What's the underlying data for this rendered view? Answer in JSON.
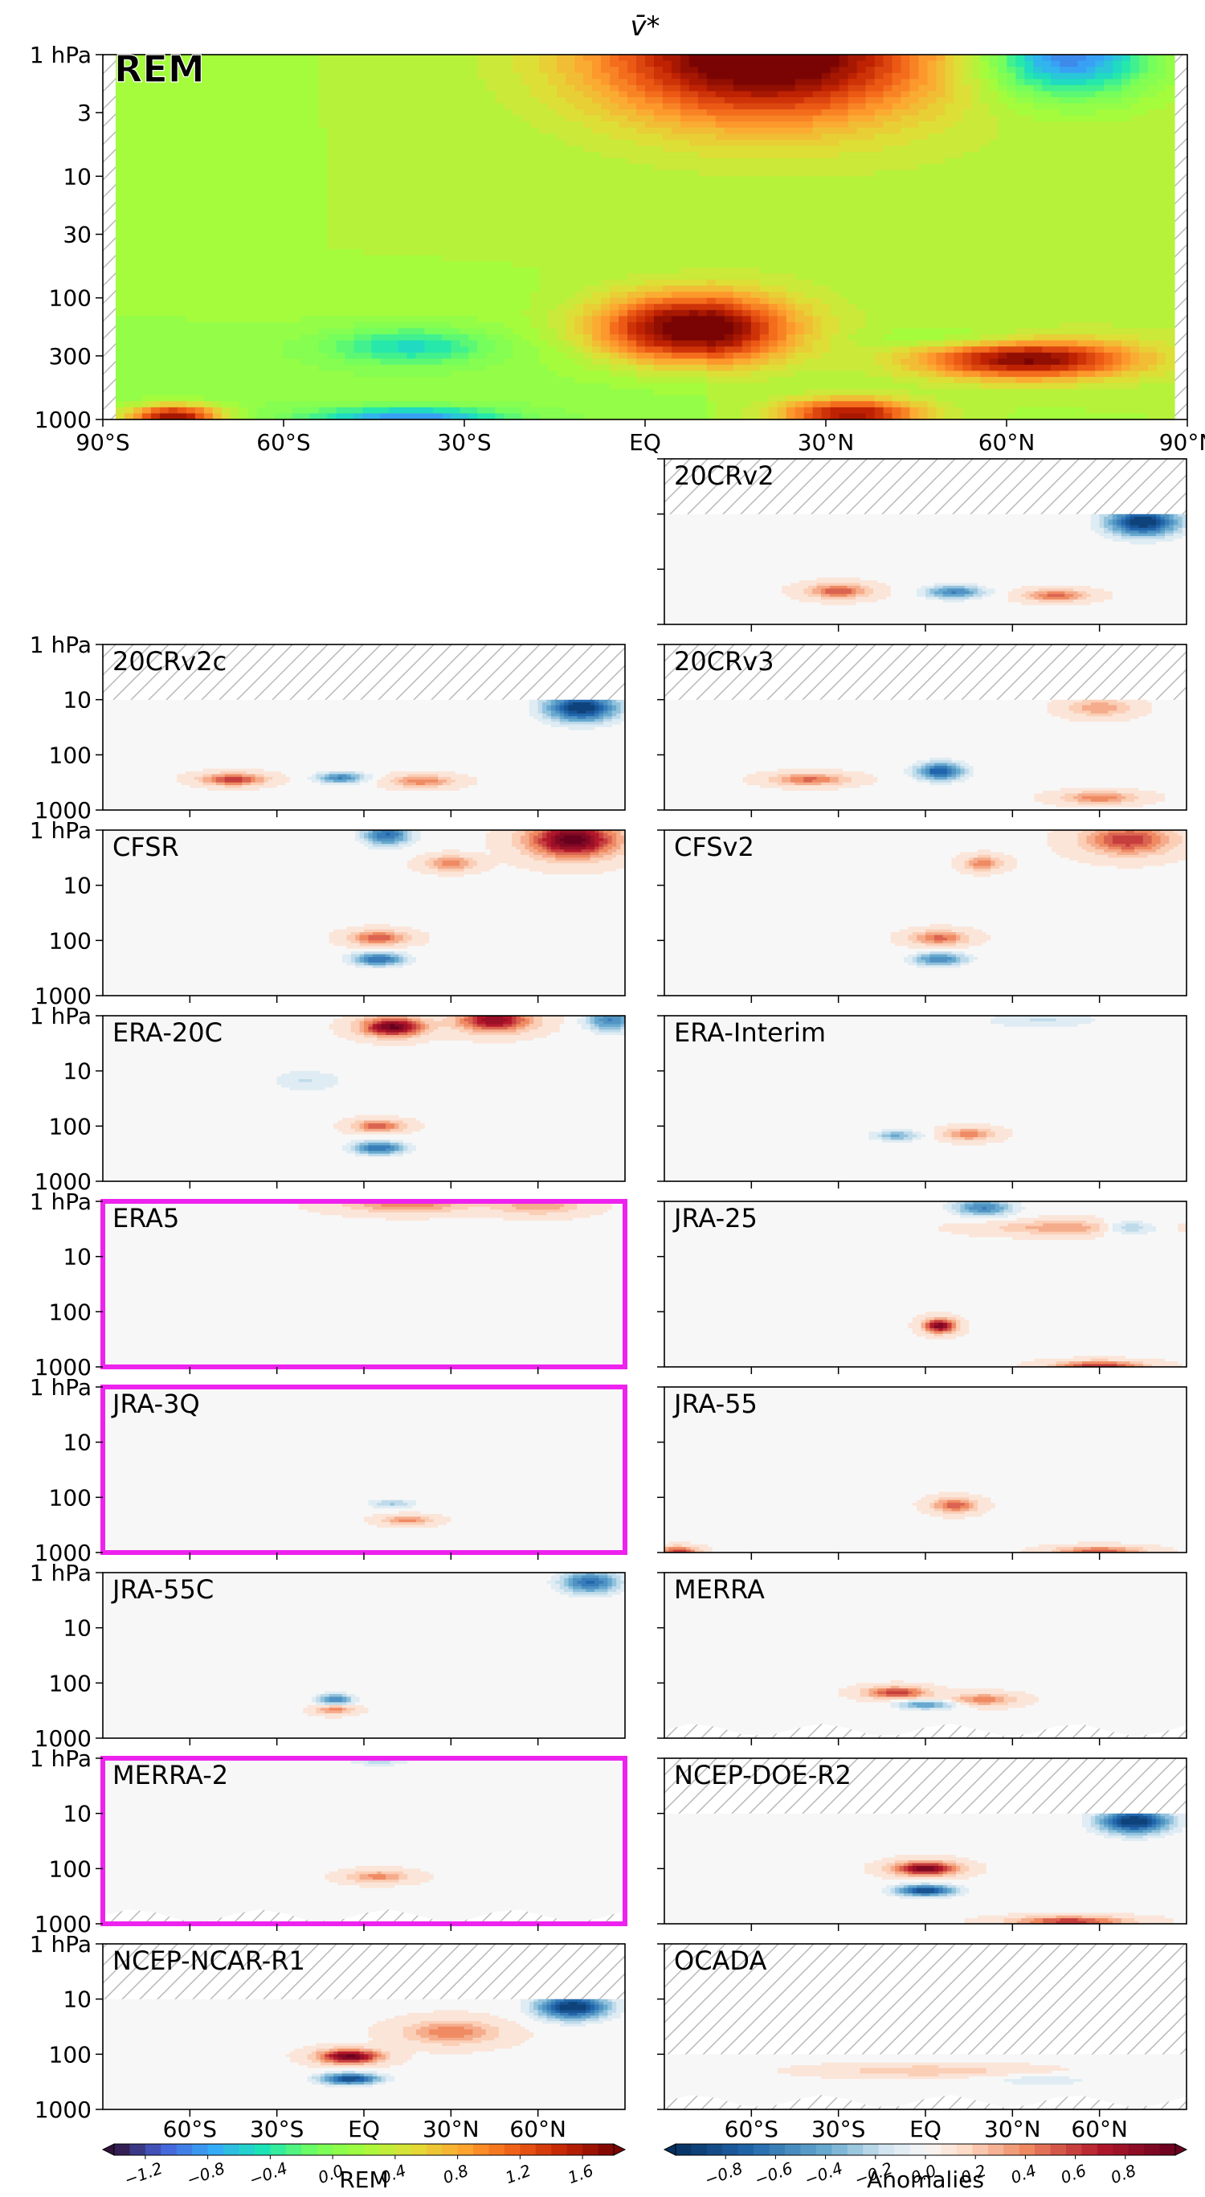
{
  "chart_data": {
    "type": "heatmap",
    "title": "v̄*",
    "x_ticks": [
      "90°S",
      "60°S",
      "30°S",
      "EQ",
      "30°N",
      "60°N",
      "90°N"
    ],
    "x_ticks_inner": [
      "60°S",
      "30°S",
      "EQ",
      "30°N",
      "60°N"
    ],
    "y_ticks": [
      "1 hPa",
      "3",
      "10",
      "30",
      "100",
      "300",
      "1000"
    ],
    "y_ticks_small": [
      "1 hPa",
      "10",
      "100",
      "1000"
    ],
    "xlim": [
      -90,
      90
    ],
    "ylim_hpa": [
      1000,
      1
    ],
    "main_panel": {
      "name": "REM",
      "features": [
        {
          "lat": 20,
          "p": 1,
          "w": 28,
          "h": 0.55,
          "v": 1.8
        },
        {
          "lat": 72,
          "p": 1,
          "w": 14,
          "h": 0.35,
          "v": -1.3
        },
        {
          "lat": 8,
          "p": 180,
          "w": 16,
          "h": 0.28,
          "v": 1.8
        },
        {
          "lat": 65,
          "p": 320,
          "w": 18,
          "h": 0.16,
          "v": 1.5
        },
        {
          "lat": 35,
          "p": 900,
          "w": 12,
          "h": 0.12,
          "v": 1.4
        },
        {
          "lat": -80,
          "p": 950,
          "w": 8,
          "h": 0.1,
          "v": 1.6
        },
        {
          "lat": -40,
          "p": 960,
          "w": 16,
          "h": 0.08,
          "v": -0.9
        },
        {
          "lat": -40,
          "p": 250,
          "w": 14,
          "h": 0.15,
          "v": -0.6
        },
        {
          "lat": 55,
          "p": 220,
          "w": 16,
          "h": 0.1,
          "v": -0.3
        }
      ]
    },
    "panels": [
      {
        "name": "20CRv2",
        "highlight": false,
        "pmin": 10,
        "features": [
          {
            "lat": 75,
            "p": 14,
            "w": 12,
            "h": 0.25,
            "v": -1.0
          },
          {
            "lat": 10,
            "p": 260,
            "w": 10,
            "h": 0.12,
            "v": -0.6
          },
          {
            "lat": -30,
            "p": 250,
            "w": 10,
            "h": 0.12,
            "v": 0.5
          },
          {
            "lat": 45,
            "p": 300,
            "w": 10,
            "h": 0.1,
            "v": 0.45
          }
        ]
      },
      {
        "name": "20CRv2c",
        "highlight": false,
        "pmin": 10,
        "features": [
          {
            "lat": 75,
            "p": 14,
            "w": 12,
            "h": 0.25,
            "v": -1.0
          },
          {
            "lat": -8,
            "p": 260,
            "w": 8,
            "h": 0.1,
            "v": -0.6
          },
          {
            "lat": -45,
            "p": 280,
            "w": 10,
            "h": 0.1,
            "v": 0.6
          },
          {
            "lat": 20,
            "p": 300,
            "w": 10,
            "h": 0.1,
            "v": 0.4
          }
        ]
      },
      {
        "name": "20CRv3",
        "highlight": false,
        "pmin": 10,
        "features": [
          {
            "lat": 5,
            "p": 200,
            "w": 8,
            "h": 0.16,
            "v": -0.8
          },
          {
            "lat": -40,
            "p": 280,
            "w": 12,
            "h": 0.1,
            "v": 0.45
          },
          {
            "lat": 60,
            "p": 600,
            "w": 12,
            "h": 0.1,
            "v": 0.4
          },
          {
            "lat": 60,
            "p": 14,
            "w": 10,
            "h": 0.15,
            "v": 0.3
          }
        ]
      },
      {
        "name": "CFSR",
        "highlight": false,
        "pmin": 1,
        "features": [
          {
            "lat": 72,
            "p": 1.5,
            "w": 14,
            "h": 0.3,
            "v": 1.0
          },
          {
            "lat": 8,
            "p": 1.2,
            "w": 8,
            "h": 0.2,
            "v": -0.7
          },
          {
            "lat": 5,
            "p": 220,
            "w": 9,
            "h": 0.12,
            "v": -0.7
          },
          {
            "lat": 5,
            "p": 90,
            "w": 9,
            "h": 0.12,
            "v": 0.5
          },
          {
            "lat": 30,
            "p": 4,
            "w": 8,
            "h": 0.12,
            "v": 0.4
          }
        ]
      },
      {
        "name": "CFSv2",
        "highlight": false,
        "pmin": 1,
        "features": [
          {
            "lat": 70,
            "p": 1.5,
            "w": 14,
            "h": 0.25,
            "v": 0.6
          },
          {
            "lat": 5,
            "p": 220,
            "w": 9,
            "h": 0.12,
            "v": -0.6
          },
          {
            "lat": 5,
            "p": 90,
            "w": 9,
            "h": 0.12,
            "v": 0.45
          },
          {
            "lat": 20,
            "p": 4,
            "w": 6,
            "h": 0.12,
            "v": 0.4
          }
        ]
      },
      {
        "name": "ERA-20C",
        "highlight": false,
        "pmin": 1,
        "features": [
          {
            "lat": 10,
            "p": 1.6,
            "w": 10,
            "h": 0.16,
            "v": 0.95
          },
          {
            "lat": 45,
            "p": 1.2,
            "w": 12,
            "h": 0.2,
            "v": 0.8
          },
          {
            "lat": 5,
            "p": 250,
            "w": 9,
            "h": 0.12,
            "v": -0.7
          },
          {
            "lat": 5,
            "p": 100,
            "w": 8,
            "h": 0.1,
            "v": 0.5
          },
          {
            "lat": 85,
            "p": 1.2,
            "w": 8,
            "h": 0.2,
            "v": -0.6
          },
          {
            "lat": -20,
            "p": 15,
            "w": 12,
            "h": 0.2,
            "v": -0.2
          }
        ]
      },
      {
        "name": "ERA-Interim",
        "highlight": false,
        "pmin": 1,
        "features": [
          {
            "lat": -10,
            "p": 150,
            "w": 8,
            "h": 0.1,
            "v": -0.4
          },
          {
            "lat": 15,
            "p": 140,
            "w": 8,
            "h": 0.1,
            "v": 0.4
          },
          {
            "lat": 40,
            "p": 1.2,
            "w": 20,
            "h": 0.15,
            "v": -0.2
          }
        ]
      },
      {
        "name": "ERA5",
        "highlight": true,
        "pmin": 1,
        "features": [
          {
            "lat": 15,
            "p": 1.1,
            "w": 20,
            "h": 0.15,
            "v": 0.4
          },
          {
            "lat": 60,
            "p": 1.2,
            "w": 14,
            "h": 0.15,
            "v": 0.3
          }
        ]
      },
      {
        "name": "JRA-25",
        "highlight": false,
        "pmin": 1,
        "features": [
          {
            "lat": 20,
            "p": 1.3,
            "w": 10,
            "h": 0.15,
            "v": -0.6
          },
          {
            "lat": 70,
            "p": 3,
            "w": 10,
            "h": 0.12,
            "v": -0.4
          },
          {
            "lat": 5,
            "p": 180,
            "w": 5,
            "h": 0.12,
            "v": 0.9
          },
          {
            "lat": 50,
            "p": 3,
            "w": 25,
            "h": 0.12,
            "v": 0.3
          },
          {
            "lat": 60,
            "p": 950,
            "w": 14,
            "h": 0.08,
            "v": 0.6
          }
        ]
      },
      {
        "name": "JRA-3Q",
        "highlight": true,
        "pmin": 1,
        "features": [
          {
            "lat": 10,
            "p": 130,
            "w": 8,
            "h": 0.08,
            "v": -0.3
          },
          {
            "lat": 15,
            "p": 260,
            "w": 8,
            "h": 0.08,
            "v": 0.35
          }
        ]
      },
      {
        "name": "JRA-55",
        "highlight": false,
        "pmin": 1,
        "features": [
          {
            "lat": 10,
            "p": 140,
            "w": 7,
            "h": 0.12,
            "v": 0.5
          },
          {
            "lat": -85,
            "p": 950,
            "w": 6,
            "h": 0.08,
            "v": 0.6
          },
          {
            "lat": 60,
            "p": 950,
            "w": 14,
            "h": 0.08,
            "v": 0.5
          }
        ]
      },
      {
        "name": "JRA-55C",
        "highlight": false,
        "pmin": 1,
        "features": [
          {
            "lat": 78,
            "p": 1.5,
            "w": 10,
            "h": 0.2,
            "v": -0.7
          },
          {
            "lat": -10,
            "p": 200,
            "w": 6,
            "h": 0.1,
            "v": -0.6
          },
          {
            "lat": -10,
            "p": 300,
            "w": 6,
            "h": 0.08,
            "v": 0.4
          }
        ]
      },
      {
        "name": "MERRA",
        "highlight": false,
        "pmin": 1,
        "features": [
          {
            "lat": -10,
            "p": 150,
            "w": 10,
            "h": 0.1,
            "v": 0.6
          },
          {
            "lat": 0,
            "p": 250,
            "w": 10,
            "h": 0.08,
            "v": -0.5
          },
          {
            "lat": 20,
            "p": 200,
            "w": 10,
            "h": 0.1,
            "v": 0.4
          }
        ]
      },
      {
        "name": "MERRA-2",
        "highlight": true,
        "pmin": 1,
        "features": [
          {
            "lat": 5,
            "p": 140,
            "w": 10,
            "h": 0.1,
            "v": 0.35
          },
          {
            "lat": 5,
            "p": 1.1,
            "w": 10,
            "h": 0.1,
            "v": -0.25
          }
        ]
      },
      {
        "name": "NCEP-DOE-R2",
        "highlight": false,
        "pmin": 10,
        "features": [
          {
            "lat": 72,
            "p": 14,
            "w": 12,
            "h": 0.22,
            "v": -1.0
          },
          {
            "lat": 0,
            "p": 100,
            "w": 10,
            "h": 0.12,
            "v": 0.9
          },
          {
            "lat": 0,
            "p": 250,
            "w": 10,
            "h": 0.1,
            "v": -0.9
          },
          {
            "lat": 50,
            "p": 900,
            "w": 18,
            "h": 0.08,
            "v": 0.6
          }
        ]
      },
      {
        "name": "NCEP-NCAR-R1",
        "highlight": false,
        "pmin": 10,
        "features": [
          {
            "lat": 72,
            "p": 14,
            "w": 12,
            "h": 0.22,
            "v": -1.0
          },
          {
            "lat": -5,
            "p": 110,
            "w": 10,
            "h": 0.12,
            "v": 0.95
          },
          {
            "lat": -5,
            "p": 280,
            "w": 10,
            "h": 0.1,
            "v": -0.9
          },
          {
            "lat": 30,
            "p": 40,
            "w": 15,
            "h": 0.2,
            "v": 0.4
          }
        ]
      },
      {
        "name": "OCADA",
        "highlight": false,
        "pmin": 100,
        "features": [
          {
            "lat": 0,
            "p": 200,
            "w": 30,
            "h": 0.1,
            "v": 0.2
          },
          {
            "lat": 40,
            "p": 300,
            "w": 20,
            "h": 0.1,
            "v": -0.15
          }
        ]
      }
    ],
    "colorbars": [
      {
        "label": "REM",
        "cmap": "turbo",
        "ticks": [
          "−1.2",
          "−0.8",
          "−0.4",
          "0.0",
          "0.4",
          "0.8",
          "1.2",
          "1.6"
        ],
        "range": [
          -1.4,
          1.8
        ]
      },
      {
        "label": "Anomalies",
        "cmap": "RdBu_r",
        "ticks": [
          "−0.8",
          "−0.6",
          "−0.4",
          "−0.2",
          "0.0",
          "0.2",
          "0.4",
          "0.6",
          "0.8"
        ],
        "range": [
          -1.0,
          1.0
        ]
      }
    ],
    "colors": {
      "highlight": "#ee22ee",
      "rem_label": "#ee22ee"
    }
  }
}
